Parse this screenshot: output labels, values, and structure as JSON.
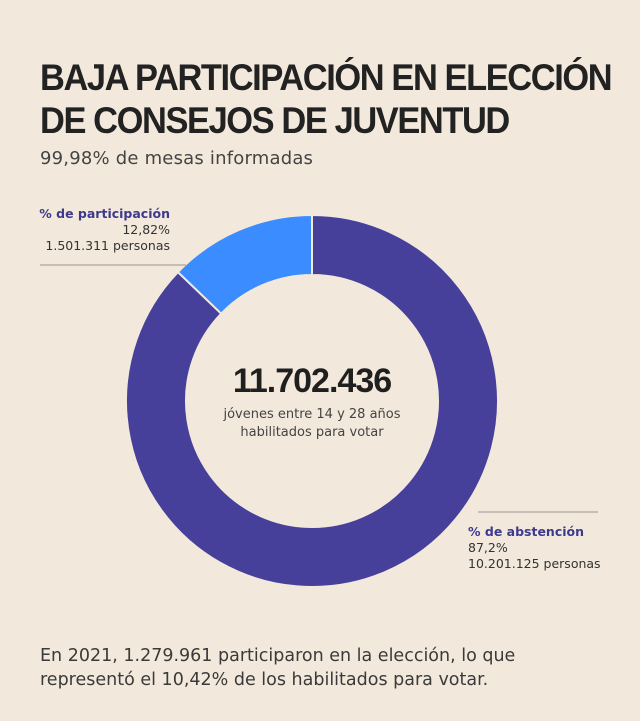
{
  "title": {
    "line1": "BAJA PARTICIPACIÓN EN ELECCIÓN",
    "line2": "DE CONSEJOS DE JUVENTUD"
  },
  "subtitle": "99,98% de mesas informadas",
  "center": {
    "total": "11.702.436",
    "desc_line1": "jóvenes entre 14 y 28 años",
    "desc_line2": "habilitados para votar"
  },
  "callouts": {
    "participation": {
      "label": "% de participación",
      "pct": "12,82%",
      "people": "1.501.311 personas"
    },
    "abstention": {
      "label": "% de abstención",
      "pct": "87,2%",
      "people": "10.201.125 personas"
    }
  },
  "footnote": {
    "line1": "En 2021, 1.279.961 participaron en la elección, lo que",
    "line2": "representó el 10,42% de los habilitados para votar."
  },
  "chart_data": {
    "type": "pie",
    "categories": [
      "% de participación",
      "% de abstención"
    ],
    "values": [
      12.82,
      87.2
    ],
    "people": [
      1501311,
      10201125
    ],
    "colors": [
      "#3a8cff",
      "#46409b"
    ],
    "total": 11702436,
    "donut": true
  }
}
